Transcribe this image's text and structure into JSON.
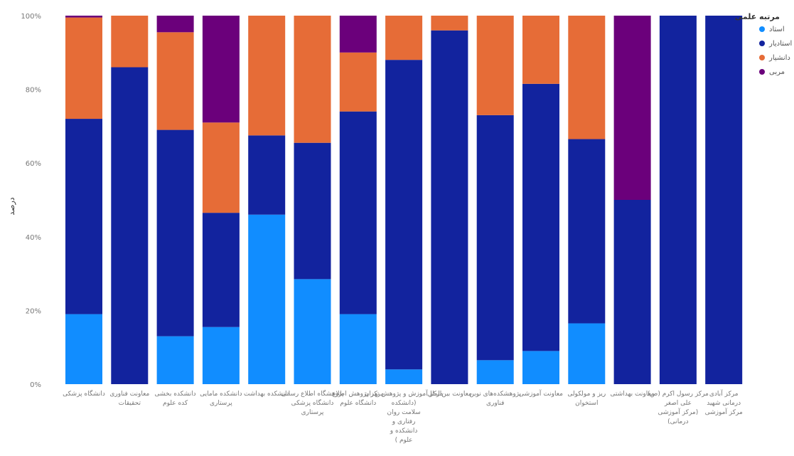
{
  "chart_data": {
    "type": "bar",
    "stacked": true,
    "ylabel": "درصد",
    "ylim": [
      0,
      100
    ],
    "yticks": [
      "0%",
      "20%",
      "40%",
      "60%",
      "80%",
      "100%"
    ],
    "grid": false,
    "legend": {
      "title": "مرتبه علمی",
      "placement": "top-right"
    },
    "categories": [
      [
        "دانشگاه پزشکی"
      ],
      [
        "معاونت فناوری",
        "تحقیقات"
      ],
      [
        "دانشکده بخشی",
        "کده علوم"
      ],
      [
        "دانشکده مامایی",
        "پرستاری"
      ],
      [
        "دانشکده بهداشت"
      ],
      [
        "پژوهشگاه اطلاع رسانی",
        "دانشگاه پزشکی",
        "پرستاری"
      ],
      [
        "مرکز پژوهش اطلاع",
        "دانشگاه علوم"
      ],
      [
        "مرکز آموزش و پژوهش تهران",
        "(دانشکده",
        "سلامت روان",
        "رفتاری و",
        "دانشکده و",
        "علوم )"
      ],
      [
        "معاونت بین‌الملل"
      ],
      [
        "پژوهشکده‌های نوین",
        "فناوری"
      ],
      [
        "معاونت آموزشی"
      ],
      [
        "ریز و مولکولی",
        "استخوان"
      ],
      [
        "معاونت بهداشتی"
      ],
      [
        "مرکز رسول اکرم (ص)",
        "علی اصغر",
        "(مرکز آموزشی",
        "درمانی)"
      ],
      [
        "مرکز آبادی",
        "درمانی شهید",
        "مرکز آموزشی"
      ]
    ],
    "series": [
      {
        "name": "استاد",
        "color": "#118DFF",
        "values": [
          19,
          0,
          13,
          15.5,
          46,
          28.5,
          19,
          4,
          0,
          6.5,
          9,
          16.5,
          0,
          0,
          0
        ]
      },
      {
        "name": "استادیار",
        "color": "#12239E",
        "values": [
          53,
          86,
          56,
          31,
          21.5,
          37,
          55,
          84,
          96,
          66.5,
          72.5,
          50,
          50,
          100,
          100
        ]
      },
      {
        "name": "دانشیار",
        "color": "#E66C37",
        "values": [
          27.5,
          14,
          26.5,
          24.5,
          32.5,
          34.5,
          16,
          12,
          4,
          27,
          18.5,
          33.5,
          0,
          0,
          0
        ]
      },
      {
        "name": "مربی",
        "color": "#6B007B",
        "values": [
          0.5,
          0,
          4.5,
          29,
          0,
          0,
          10,
          0,
          0,
          0,
          0,
          0,
          50,
          0,
          0
        ]
      }
    ]
  }
}
